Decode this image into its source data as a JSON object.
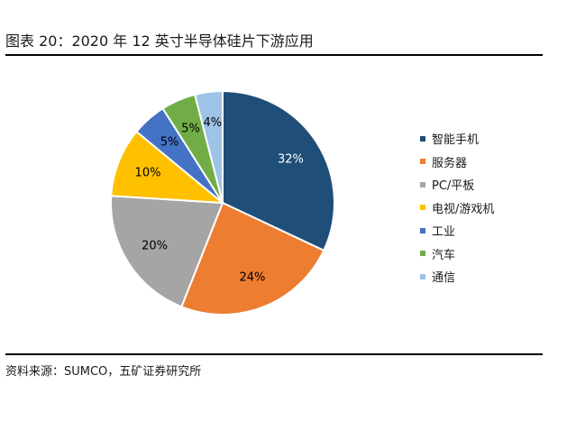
{
  "figure": {
    "title": "图表 20：2020 年 12 英寸半导体硅片下游应用",
    "source": "资料来源：SUMCO，五矿证券研究所"
  },
  "chart_data": {
    "type": "pie",
    "title": "图表 20：2020 年 12 英寸半导体硅片下游应用",
    "legend_position": "right",
    "start_angle": "12 o'clock, clockwise",
    "slices": [
      {
        "label": "智能手机",
        "value": 32,
        "value_label": "32%",
        "color": "#1f4e79",
        "label_color": "#ffffff"
      },
      {
        "label": "服务器",
        "value": 24,
        "value_label": "24%",
        "color": "#ed7d31",
        "label_color": "#000000"
      },
      {
        "label": "PC/平板",
        "value": 20,
        "value_label": "20%",
        "color": "#a5a5a5",
        "label_color": "#000000"
      },
      {
        "label": "电视/游戏机",
        "value": 10,
        "value_label": "10%",
        "color": "#ffc000",
        "label_color": "#000000"
      },
      {
        "label": "工业",
        "value": 5,
        "value_label": "5%",
        "color": "#4472c4",
        "label_color": "#000000"
      },
      {
        "label": "汽车",
        "value": 5,
        "value_label": "5%",
        "color": "#70ad47",
        "label_color": "#000000"
      },
      {
        "label": "通信",
        "value": 4,
        "value_label": "4%",
        "color": "#9dc3e6",
        "label_color": "#000000"
      }
    ]
  }
}
